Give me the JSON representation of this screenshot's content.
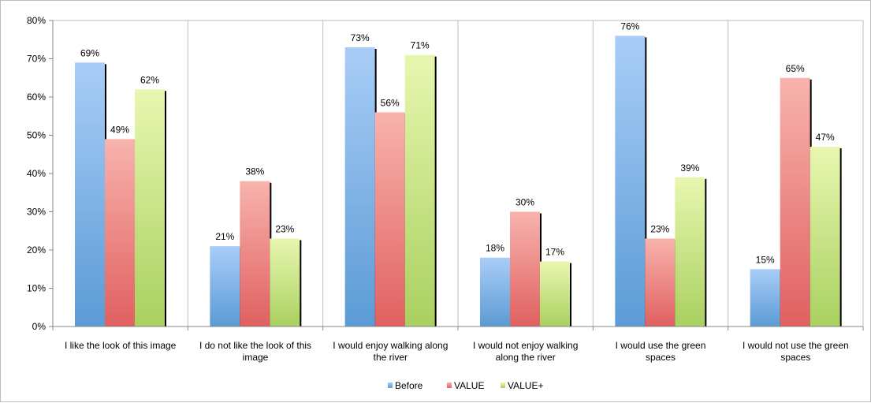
{
  "chart_data": {
    "type": "bar",
    "categories": [
      [
        "I like the look of this image"
      ],
      [
        "I do not like the look of this",
        "image"
      ],
      [
        "I would enjoy walking along",
        "the river"
      ],
      [
        "I would not enjoy walking",
        "along the river"
      ],
      [
        "I would use the green",
        "spaces"
      ],
      [
        "I would not use the green",
        "spaces"
      ]
    ],
    "series": [
      {
        "name": "Before",
        "values": [
          69,
          21,
          73,
          18,
          76,
          15
        ],
        "color": "#5b9bd5",
        "color_light": "#a9cdf7",
        "labels": [
          "69%",
          "21%",
          "73%",
          "18%",
          "76%",
          "15%"
        ]
      },
      {
        "name": "VALUE",
        "values": [
          49,
          38,
          56,
          30,
          23,
          65
        ],
        "color": "#e06060",
        "color_light": "#f8b3ad",
        "labels": [
          "49%",
          "38%",
          "56%",
          "30%",
          "23%",
          "65%"
        ]
      },
      {
        "name": "VALUE+",
        "values": [
          62,
          23,
          71,
          17,
          39,
          47
        ],
        "color": "#a9d060",
        "color_light": "#e8f7b0",
        "labels": [
          "62%",
          "23%",
          "71%",
          "17%",
          "39%",
          "47%"
        ]
      }
    ],
    "y_ticks": [
      "0%",
      "10%",
      "20%",
      "30%",
      "40%",
      "50%",
      "60%",
      "70%",
      "80%"
    ],
    "ylim": [
      0,
      80
    ],
    "grid": "vertical-category-separators",
    "legend_position": "bottom",
    "title": "",
    "xlabel": "",
    "ylabel": ""
  }
}
